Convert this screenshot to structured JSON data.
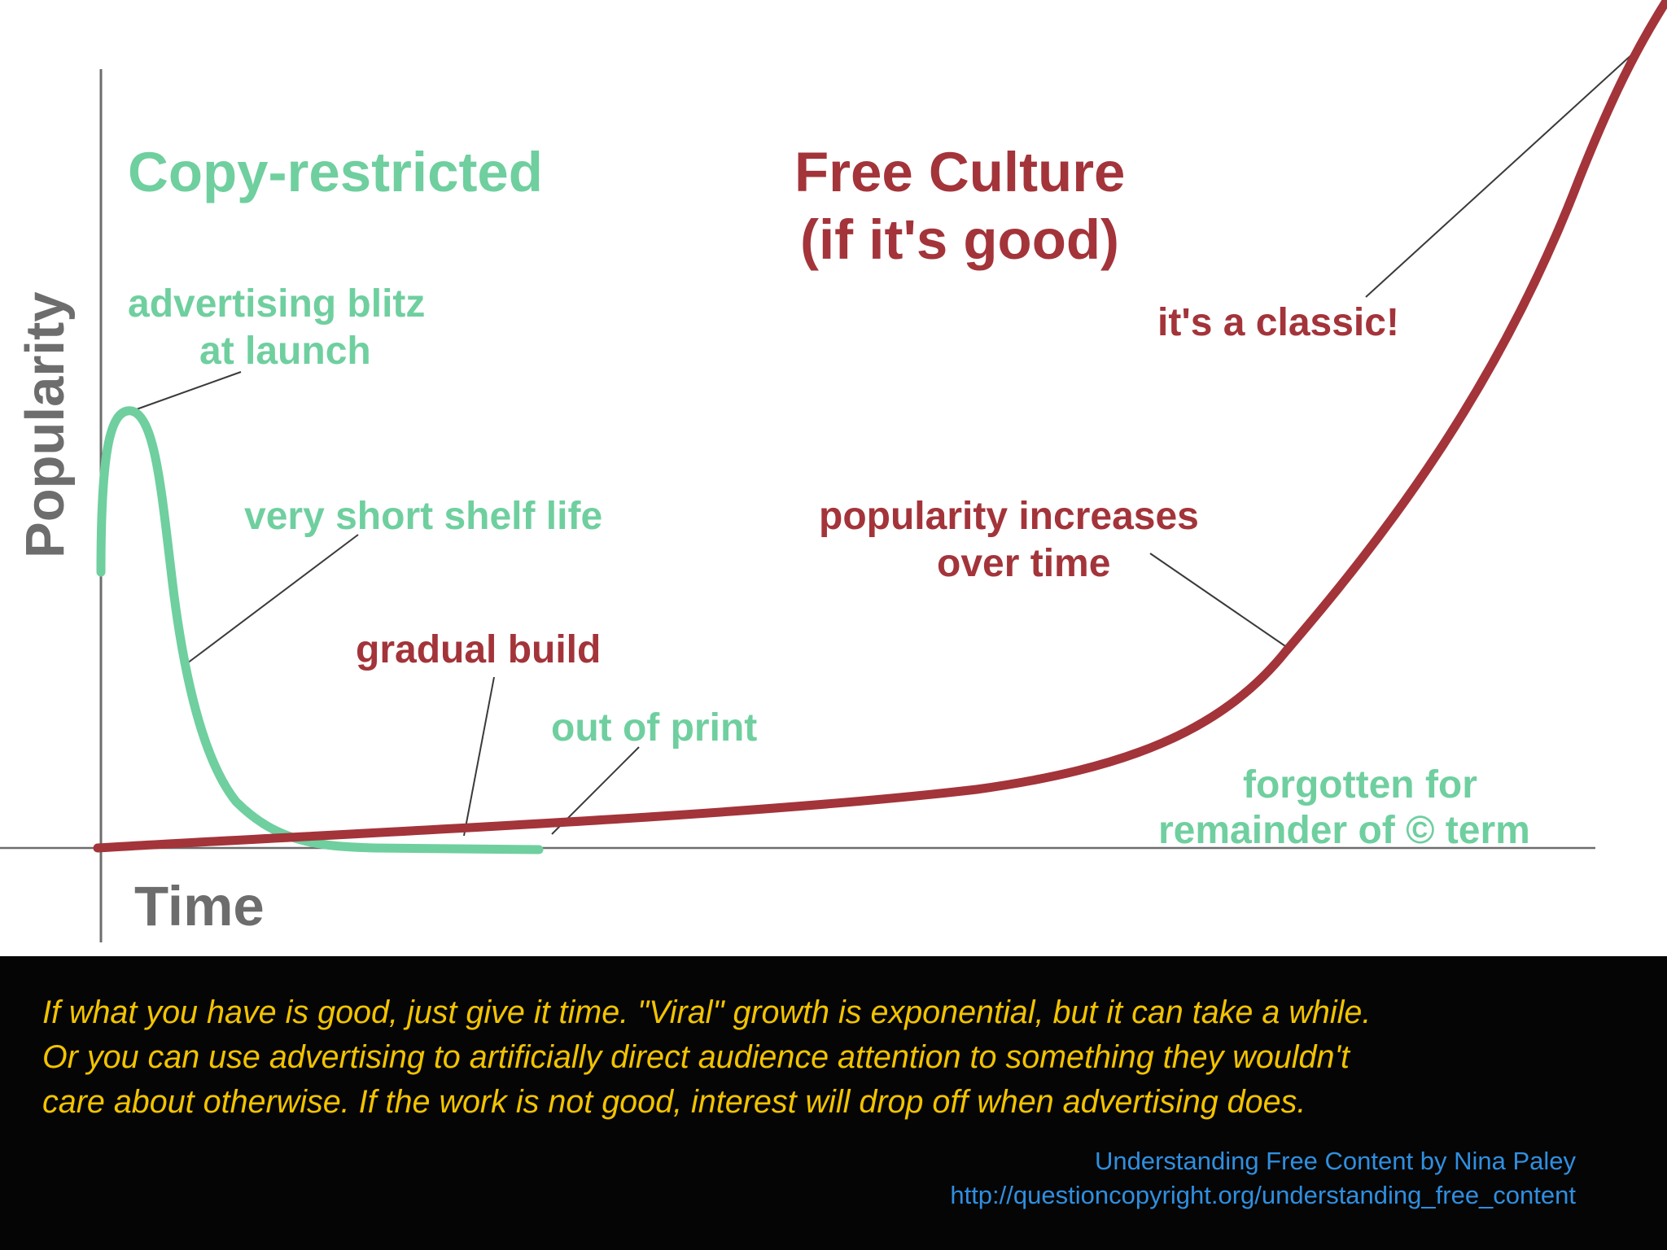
{
  "diagram": {
    "axes": {
      "y_label": "Popularity",
      "x_label": "Time"
    },
    "curves": [
      {
        "name": "Copy-restricted",
        "color": "#6fcf9f"
      },
      {
        "name": "Free Culture (if it's good)",
        "color": "#a3343a"
      }
    ],
    "labels": {
      "copy_restricted_title": "Copy-restricted",
      "free_culture_title_line1": "Free Culture",
      "free_culture_title_line2": "(if it's good)",
      "advertising_blitz_line1": "advertising blitz",
      "advertising_blitz_line2": "at launch",
      "short_shelf_life": "very short shelf life",
      "gradual_build": "gradual build",
      "out_of_print": "out of print",
      "popularity_increases_line1": "popularity increases",
      "popularity_increases_line2": "over time",
      "classic": "it's a classic!",
      "forgotten_line1": "forgotten for",
      "forgotten_line2": "remainder of © term"
    },
    "colors": {
      "green": "#6fcf9f",
      "red": "#a3343a",
      "axis": "#6d6d6d",
      "axis_label": "#6d6d6d",
      "leader": "#3a3a3a"
    }
  },
  "caption": {
    "lines": [
      "If what you have is good, just give it time. \"Viral\" growth is exponential, but it can take a while.",
      "Or you can use advertising to artificially direct audience attention to something they wouldn't",
      "care about otherwise. If the work is not good, interest will drop off when advertising does."
    ],
    "color": "#f2c300"
  },
  "credit": {
    "line1": "Understanding Free Content by Nina Paley",
    "line2": "http://questioncopyright.org/understanding_free_content",
    "color": "#2f8fe0"
  }
}
